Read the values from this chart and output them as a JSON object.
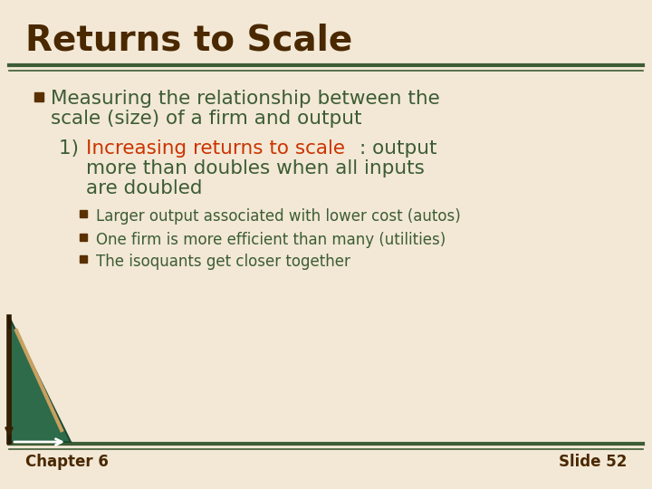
{
  "title": "Returns to Scale",
  "title_color": "#4a2800",
  "title_fontsize": 28,
  "bg_color": "#f2e8d5",
  "separator_color": "#3d5c35",
  "bullet_text_color": "#3d5c35",
  "bullet_marker_color": "#5a3000",
  "number_color": "#3d5c35",
  "highlight_color": "#cc3300",
  "subbullet_color": "#3d5c35",
  "footer_color": "#4a2800",
  "footer_bg": "#d9cdb0",
  "bullet1_line1": "Measuring the relationship between the",
  "bullet1_line2": "scale (size) of a firm and output",
  "item_number": "1)  ",
  "item_highlight": "Increasing returns to scale",
  "item_rest_line1": ": output",
  "item_rest_line2": "more than doubles when all inputs",
  "item_rest_line3": "are doubled",
  "subbullets": [
    "Larger output associated with lower cost (autos)",
    "One firm is more efficient than many (utilities)",
    "The isoquants get closer together"
  ],
  "footer_left": "Chapter 6",
  "footer_right": "Slide 52",
  "tri_color": "#2d6b4a",
  "tri_edge_color": "#1a4a30",
  "diag_line_color": "#c8a060",
  "arrow_color_v": "#3a2000",
  "arrow_color_h": "#ffffff"
}
